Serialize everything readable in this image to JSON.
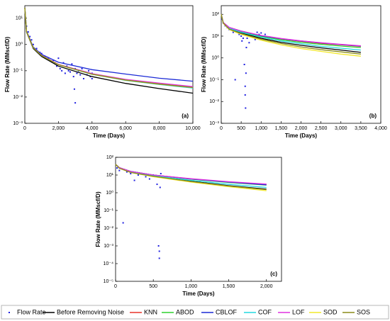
{
  "chart_data": [
    {
      "type": "line",
      "annotation": "(a)",
      "xlabel": "Time (Days)",
      "ylabel": "Flow Rate (MMscf/D)",
      "yscale": "log",
      "xlim": [
        0,
        10000
      ],
      "ylim": [
        0.001,
        30
      ],
      "xticks": [
        0,
        {
          "value": 2000,
          "label": "2,000"
        },
        {
          "value": 4000,
          "label": "4,000"
        },
        {
          "value": 6000,
          "label": "6,000"
        },
        {
          "value": 8000,
          "label": "8,000"
        },
        {
          "value": 10000,
          "label": "10,000"
        }
      ],
      "yticks": [
        {
          "value": 0.001,
          "label": "10⁻³"
        },
        {
          "value": 0.01,
          "label": "10⁻²"
        },
        {
          "value": 0.1,
          "label": "10⁻¹"
        },
        {
          "value": 1,
          "label": "10⁰"
        },
        {
          "value": 10,
          "label": "10¹"
        }
      ],
      "x": [
        1,
        100,
        500,
        1000,
        2000,
        4000,
        6000,
        8000,
        10000
      ],
      "points": {
        "name": "Flow Rate",
        "color": "#1f1fe0",
        "x": [
          50,
          100,
          200,
          300,
          400,
          500,
          700,
          900,
          1000,
          1200,
          1400,
          1500,
          1600,
          1800,
          1900,
          2000,
          2100,
          2200,
          2300,
          2400,
          2500,
          2600,
          2700,
          2800,
          2900,
          3000,
          3000,
          3100,
          3200,
          3300,
          3400,
          3500,
          3600,
          3700,
          3800,
          3900,
          4000,
          4000,
          2950,
          1700
        ],
        "y": [
          8,
          5,
          3,
          2,
          1.5,
          1,
          0.7,
          0.5,
          0.45,
          0.35,
          0.3,
          0.25,
          0.22,
          0.2,
          0.15,
          0.3,
          0.12,
          0.1,
          0.2,
          0.08,
          0.15,
          0.1,
          0.09,
          0.18,
          0.06,
          0.12,
          0.006,
          0.08,
          0.1,
          0.07,
          0.12,
          0.05,
          0.09,
          0.07,
          0.1,
          0.06,
          0.05,
          0.08,
          0.02,
          0.25
        ]
      },
      "series": [
        {
          "name": "Before Removing Noise",
          "color": "#000000",
          "values": [
            25,
            3,
            0.7,
            0.35,
            0.15,
            0.06,
            0.033,
            0.021,
            0.014
          ]
        },
        {
          "name": "KNN",
          "color": "#e8332a",
          "values": [
            25,
            3.1,
            0.75,
            0.38,
            0.17,
            0.075,
            0.045,
            0.032,
            0.024
          ]
        },
        {
          "name": "ABOD",
          "color": "#2fd12f",
          "values": [
            25,
            3.1,
            0.75,
            0.38,
            0.17,
            0.074,
            0.044,
            0.031,
            0.023
          ]
        },
        {
          "name": "CBLOF",
          "color": "#1c2bd6",
          "values": [
            25,
            3.3,
            0.8,
            0.42,
            0.21,
            0.11,
            0.075,
            0.052,
            0.04
          ]
        },
        {
          "name": "COF",
          "color": "#22d8e0",
          "values": [
            25,
            3.1,
            0.75,
            0.38,
            0.17,
            0.073,
            0.043,
            0.03,
            0.022
          ]
        },
        {
          "name": "LOF",
          "color": "#e030e0",
          "values": [
            25,
            3.1,
            0.76,
            0.39,
            0.175,
            0.078,
            0.047,
            0.034,
            0.025
          ]
        },
        {
          "name": "SOD",
          "color": "#f2e82a",
          "values": [
            25,
            3.1,
            0.75,
            0.38,
            0.17,
            0.074,
            0.044,
            0.031,
            0.023
          ]
        },
        {
          "name": "SOS",
          "color": "#8c8c1a",
          "values": [
            25,
            3.1,
            0.75,
            0.38,
            0.17,
            0.074,
            0.044,
            0.031,
            0.023
          ]
        }
      ]
    },
    {
      "type": "line",
      "annotation": "(b)",
      "xlabel": "Time (Days)",
      "ylabel": "Flow Rate (MMscf/D)",
      "yscale": "log",
      "xlim": [
        0,
        4000
      ],
      "ylim": [
        0.001,
        250
      ],
      "xticks": [
        0,
        500,
        {
          "value": 1000,
          "label": "1,000"
        },
        {
          "value": 1500,
          "label": "1,500"
        },
        {
          "value": 2000,
          "label": "2,000"
        },
        {
          "value": 2500,
          "label": "2,500"
        },
        {
          "value": 3000,
          "label": "3,000"
        },
        {
          "value": 3500,
          "label": "3,500"
        },
        {
          "value": 4000,
          "label": "4,000"
        }
      ],
      "yticks": [
        {
          "value": 0.001,
          "label": "10⁻³"
        },
        {
          "value": 0.01,
          "label": "10⁻²"
        },
        {
          "value": 0.1,
          "label": "10⁻¹"
        },
        {
          "value": 1,
          "label": "10⁰"
        },
        {
          "value": 10,
          "label": "10¹"
        },
        {
          "value": 100,
          "label": "10²"
        }
      ],
      "x": [
        1,
        50,
        200,
        500,
        1000,
        1500,
        2000,
        2500,
        3000,
        3500
      ],
      "points": {
        "name": "Flow Rate",
        "color": "#1f1fe0",
        "x": [
          20,
          50,
          100,
          150,
          200,
          300,
          350,
          400,
          450,
          500,
          520,
          550,
          580,
          600,
          600,
          610,
          620,
          630,
          650,
          700,
          750,
          800,
          850,
          900,
          950,
          1000,
          1050,
          1100
        ],
        "y": [
          60,
          40,
          30,
          25,
          20,
          15,
          0.1,
          18,
          12,
          10,
          6,
          8,
          0.5,
          0.05,
          0.02,
          0.005,
          0.2,
          3,
          8,
          5,
          10,
          12,
          7,
          15,
          12,
          14,
          10,
          12
        ]
      },
      "series": [
        {
          "name": "Before Removing Noise",
          "color": "#000000",
          "values": [
            100,
            40,
            22,
            14,
            8,
            5.2,
            3.8,
            2.9,
            2.3,
            1.8
          ]
        },
        {
          "name": "KNN",
          "color": "#e8332a",
          "values": [
            100,
            42,
            25,
            17,
            10.5,
            7.5,
            5.8,
            4.7,
            4,
            3.4
          ]
        },
        {
          "name": "ABOD",
          "color": "#2fd12f",
          "values": [
            100,
            41,
            24,
            16,
            9.8,
            6.8,
            5.2,
            4.2,
            3.5,
            3
          ]
        },
        {
          "name": "CBLOF",
          "color": "#1c2bd6",
          "values": [
            100,
            42,
            25,
            17,
            10.5,
            7.6,
            6,
            4.9,
            4.1,
            3.5
          ]
        },
        {
          "name": "COF",
          "color": "#22d8e0",
          "values": [
            100,
            41,
            23,
            15,
            9,
            6,
            4.5,
            3.4,
            2.8,
            2.3
          ]
        },
        {
          "name": "LOF",
          "color": "#e030e0",
          "values": [
            100,
            42,
            25,
            17,
            10.8,
            7.8,
            6.1,
            5,
            4.2,
            3.6
          ]
        },
        {
          "name": "SOD",
          "color": "#f2e82a",
          "values": [
            100,
            39,
            20,
            12,
            6.5,
            4,
            2.7,
            2,
            1.5,
            1.2
          ]
        },
        {
          "name": "SOS",
          "color": "#8c8c1a",
          "values": [
            100,
            40,
            21,
            13,
            7.2,
            4.6,
            3.2,
            2.4,
            1.9,
            1.5
          ]
        }
      ]
    },
    {
      "type": "line",
      "annotation": "(c)",
      "xlabel": "Time (Days)",
      "ylabel": "Flow Rate (MMscf/D)",
      "yscale": "log",
      "xlim": [
        0,
        2200
      ],
      "ylim": [
        1e-05,
        100
      ],
      "xticks": [
        0,
        500,
        {
          "value": 1000,
          "label": "1,000"
        },
        {
          "value": 1500,
          "label": "1,500"
        },
        {
          "value": 2000,
          "label": "2,000"
        }
      ],
      "yticks": [
        {
          "value": 1e-05,
          "label": "10⁻⁵"
        },
        {
          "value": 0.0001,
          "label": "10⁻⁴"
        },
        {
          "value": 0.001,
          "label": "10⁻³"
        },
        {
          "value": 0.01,
          "label": "10⁻²"
        },
        {
          "value": 0.1,
          "label": "10⁻¹"
        },
        {
          "value": 1,
          "label": "10⁰"
        },
        {
          "value": 10,
          "label": "10¹"
        },
        {
          "value": 100,
          "label": "10²"
        }
      ],
      "x": [
        1,
        50,
        200,
        500,
        1000,
        1500,
        2000
      ],
      "points": {
        "name": "Flow Rate",
        "color": "#1f1fe0",
        "x": [
          20,
          50,
          100,
          150,
          200,
          250,
          300,
          350,
          400,
          450,
          500,
          520,
          550,
          570,
          580,
          580,
          590,
          600
        ],
        "y": [
          25,
          18,
          0.02,
          15,
          12,
          5,
          10,
          12,
          8,
          6,
          10,
          9,
          3,
          0.001,
          0.0005,
          0.0002,
          2,
          12
        ]
      },
      "series": [
        {
          "name": "Before Removing Noise",
          "color": "#000000",
          "values": [
            40,
            25,
            15,
            9,
            4.5,
            2.5,
            1.6
          ]
        },
        {
          "name": "KNN",
          "color": "#e8332a",
          "values": [
            40,
            26,
            16,
            10,
            6,
            4,
            3
          ]
        },
        {
          "name": "ABOD",
          "color": "#2fd12f",
          "values": [
            40,
            26,
            16,
            10,
            5.8,
            3.8,
            2.7
          ]
        },
        {
          "name": "CBLOF",
          "color": "#1c2bd6",
          "values": [
            40,
            26,
            16,
            10,
            6,
            4,
            2.8
          ]
        },
        {
          "name": "COF",
          "color": "#22d8e0",
          "values": [
            40,
            25,
            15,
            9,
            5,
            3,
            2
          ]
        },
        {
          "name": "LOF",
          "color": "#e030e0",
          "values": [
            40,
            26,
            16,
            10,
            6.2,
            4.2,
            3.1
          ]
        },
        {
          "name": "SOD",
          "color": "#f2e82a",
          "values": [
            40,
            24,
            14,
            8,
            4,
            2.2,
            1.3
          ]
        },
        {
          "name": "SOS",
          "color": "#8c8c1a",
          "values": [
            40,
            24,
            14,
            8.5,
            4.3,
            2.4,
            1.5
          ]
        }
      ]
    }
  ]
}
